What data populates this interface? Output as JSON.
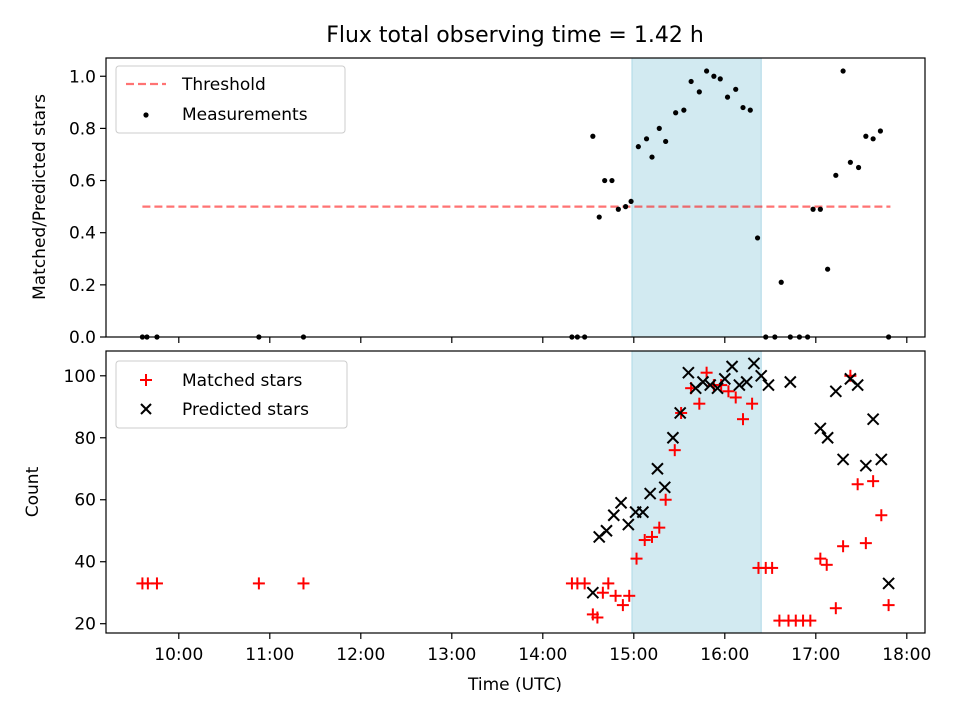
{
  "chart_data": [
    {
      "type": "scatter",
      "title": "Flux total observing time = 1.42 h",
      "xlabel": "",
      "ylabel": "Matched/Predicted stars",
      "xlim": [
        9.2,
        18.2
      ],
      "ylim": [
        0,
        1.07
      ],
      "yticks": [
        0.0,
        0.2,
        0.4,
        0.6,
        0.8,
        1.0
      ],
      "ytick_labels": [
        "0.0",
        "0.2",
        "0.4",
        "0.6",
        "0.8",
        "1.0"
      ],
      "xticks": [
        10,
        11,
        12,
        13,
        14,
        15,
        16,
        17,
        18
      ],
      "shaded_span": {
        "x0": 14.98,
        "x1": 16.4,
        "color": "#add8e6"
      },
      "legend_position": "top-left",
      "legend": [
        "Threshold",
        "Measurements"
      ],
      "series": [
        {
          "name": "Threshold",
          "kind": "dashed-line",
          "color": "#ff0000",
          "x": [
            9.6,
            17.82
          ],
          "y": [
            0.5,
            0.5
          ]
        },
        {
          "name": "Measurements",
          "kind": "dot",
          "color": "#000000",
          "x": [
            9.6,
            9.65,
            9.76,
            10.88,
            11.37,
            14.32,
            14.38,
            14.46,
            14.55,
            14.62,
            14.68,
            14.76,
            14.83,
            14.91,
            14.97,
            15.05,
            15.14,
            15.2,
            15.28,
            15.35,
            15.46,
            15.55,
            15.63,
            15.72,
            15.8,
            15.88,
            15.95,
            16.03,
            16.12,
            16.2,
            16.28,
            16.36,
            16.45,
            16.55,
            16.62,
            16.72,
            16.82,
            16.91,
            16.97,
            17.05,
            17.13,
            17.22,
            17.3,
            17.38,
            17.47,
            17.55,
            17.63,
            17.71,
            17.8
          ],
          "y": [
            0,
            0,
            0,
            0,
            0,
            0,
            0,
            0,
            0.77,
            0.46,
            0.6,
            0.6,
            0.49,
            0.5,
            0.52,
            0.73,
            0.76,
            0.69,
            0.8,
            0.75,
            0.86,
            0.87,
            0.98,
            0.94,
            1.02,
            1.0,
            0.99,
            0.92,
            0.95,
            0.88,
            0.87,
            0.38,
            0,
            0,
            0.21,
            0,
            0,
            0,
            0.49,
            0.49,
            0.26,
            0.62,
            1.02,
            0.67,
            0.65,
            0.77,
            0.76,
            0.79,
            0.0
          ]
        }
      ]
    },
    {
      "type": "scatter",
      "title": "",
      "xlabel": "Time (UTC)",
      "ylabel": "Count",
      "xlim": [
        9.2,
        18.2
      ],
      "ylim": [
        17,
        108
      ],
      "yticks": [
        20,
        40,
        60,
        80,
        100
      ],
      "ytick_labels": [
        "20",
        "40",
        "60",
        "80",
        "100"
      ],
      "xticks": [
        10,
        11,
        12,
        13,
        14,
        15,
        16,
        17,
        18
      ],
      "xtick_labels": [
        "10:00",
        "11:00",
        "12:00",
        "13:00",
        "14:00",
        "15:00",
        "16:00",
        "17:00",
        "18:00"
      ],
      "shaded_span": {
        "x0": 14.98,
        "x1": 16.4,
        "color": "#add8e6"
      },
      "legend_position": "top-left",
      "legend": [
        "Matched stars",
        "Predicted stars"
      ],
      "series": [
        {
          "name": "Matched stars",
          "kind": "plus",
          "color": "#ff0000",
          "x": [
            9.6,
            9.66,
            9.76,
            10.88,
            11.37,
            14.32,
            14.38,
            14.46,
            14.55,
            14.6,
            14.66,
            14.72,
            14.8,
            14.88,
            14.95,
            15.03,
            15.12,
            15.2,
            15.28,
            15.35,
            15.45,
            15.52,
            15.63,
            15.72,
            15.8,
            15.88,
            15.96,
            16.04,
            16.12,
            16.2,
            16.3,
            16.37,
            16.45,
            16.52,
            16.6,
            16.7,
            16.78,
            16.86,
            16.94,
            17.05,
            17.12,
            17.22,
            17.3,
            17.38,
            17.46,
            17.55,
            17.63,
            17.72,
            17.8
          ],
          "y": [
            33,
            33,
            33,
            33,
            33,
            33,
            33,
            33,
            23,
            22,
            30,
            33,
            29,
            26,
            29,
            41,
            47,
            48,
            51,
            60,
            76,
            88,
            96,
            91,
            101,
            97,
            97,
            95,
            93,
            86,
            91,
            38,
            38,
            38,
            21,
            21,
            21,
            21,
            21,
            41,
            39,
            25,
            45,
            100,
            65,
            46,
            66,
            55,
            26
          ]
        },
        {
          "name": "Predicted stars",
          "kind": "x",
          "color": "#000000",
          "x": [
            14.55,
            14.62,
            14.7,
            14.78,
            14.86,
            14.94,
            15.02,
            15.1,
            15.18,
            15.26,
            15.34,
            15.43,
            15.51,
            15.6,
            15.68,
            15.76,
            15.84,
            15.92,
            16.0,
            16.08,
            16.16,
            16.24,
            16.32,
            16.4,
            16.48,
            16.72,
            17.05,
            17.13,
            17.22,
            17.3,
            17.38,
            17.46,
            17.55,
            17.63,
            17.72,
            17.8
          ],
          "y": [
            30,
            48,
            50,
            55,
            59,
            52,
            56,
            56,
            62,
            70,
            64,
            80,
            88,
            101,
            96,
            98,
            97,
            96,
            99,
            103,
            97,
            98,
            104,
            100,
            97,
            98,
            83,
            80,
            95,
            73,
            99,
            97,
            71,
            86,
            73,
            33
          ]
        }
      ]
    }
  ]
}
